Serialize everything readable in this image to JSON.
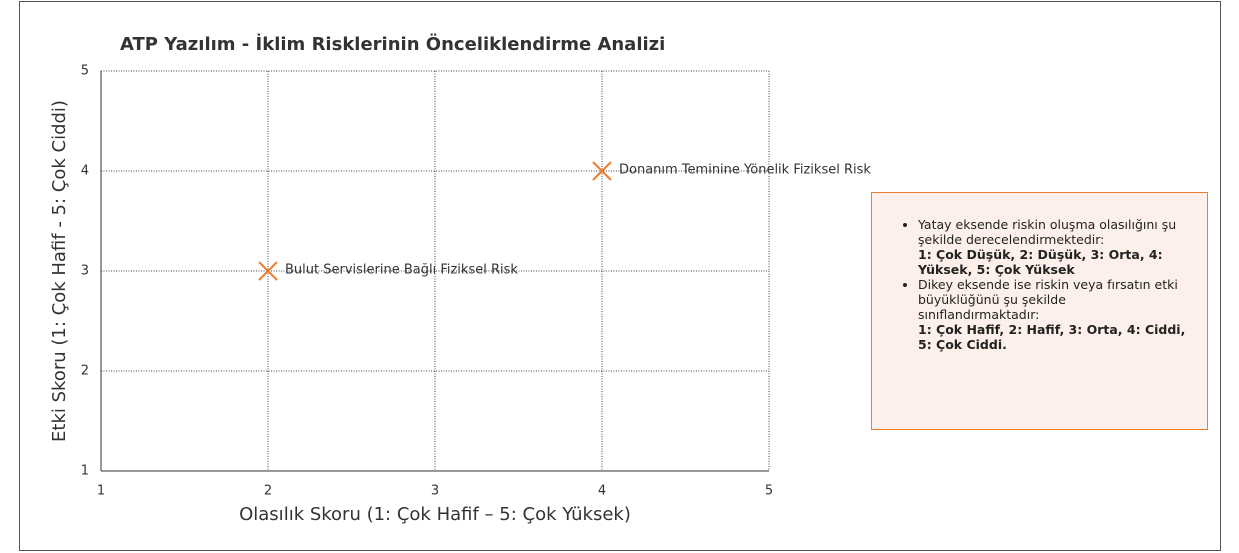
{
  "chart_data": {
    "type": "scatter",
    "title": "ATP Yazılım - İklim Risklerinin Önceliklendirme Analizi",
    "x_label": "Olasılık Skoru (1: Çok Hafif – 5: Çok Yüksek)",
    "y_label": "Etki Skoru (1: Çok Hafif - 5: Çok Ciddi)",
    "x": [
      2,
      4
    ],
    "values": [
      3,
      4
    ],
    "point_labels": [
      "Bulut Servislerine Bağlı Fiziksel Risk",
      "Donanım Teminine Yönelik Fiziksel Risk"
    ],
    "color": "#ed7d31",
    "marker": "x",
    "xlim": [
      1,
      5
    ],
    "xticks": [
      1,
      2,
      3,
      4,
      5
    ],
    "ylim": [
      1,
      5
    ],
    "yticks": [
      1,
      2,
      3,
      4,
      5
    ],
    "grid": true,
    "note": [
      {
        "text": "Yatay eksende riskin oluşma olasılığını şu şekilde derecelendirmektedir:",
        "bold": "1: Çok Düşük, 2: Düşük, 3: Orta, 4: Yüksek, 5: Çok Yüksek"
      },
      {
        "text": "Dikey eksende ise riskin veya fırsatın etki büyüklüğünü şu şekilde sınıflandırmaktadır:",
        "bold": "1: Çok Hafif, 2: Hafif, 3: Orta, 4: Ciddi, 5: Çok Ciddi."
      }
    ]
  }
}
